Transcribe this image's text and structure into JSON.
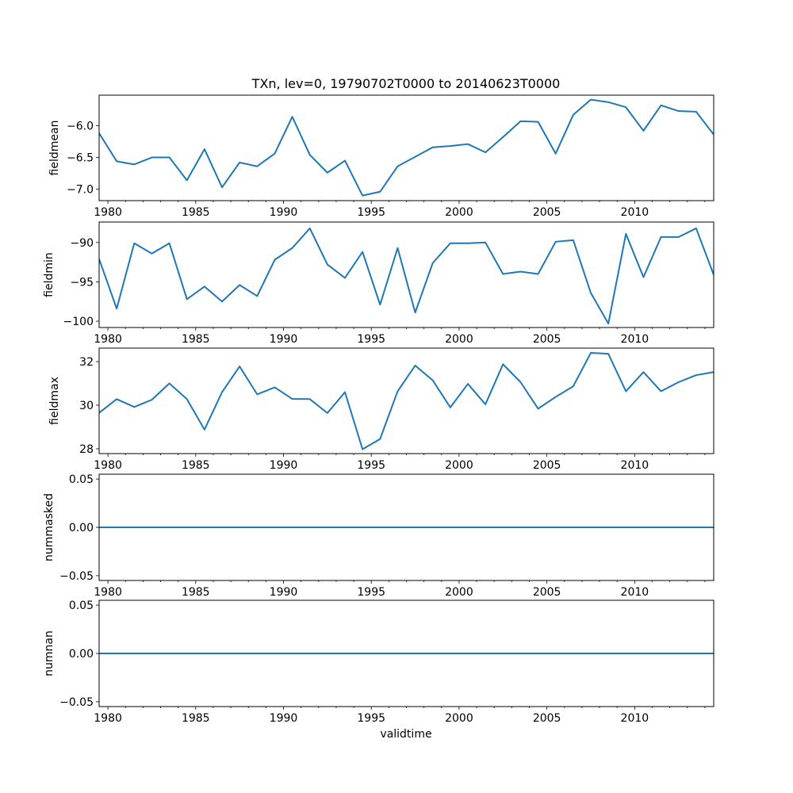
{
  "chart_data": {
    "type": "line",
    "title": "TXn, lev=0, 19790702T0000 to 20140623T0000",
    "xlabel": "validtime",
    "x": [
      1979.5,
      1980.5,
      1981.5,
      1982.5,
      1983.5,
      1984.5,
      1985.5,
      1986.5,
      1987.5,
      1988.5,
      1989.5,
      1990.5,
      1991.5,
      1992.5,
      1993.5,
      1994.5,
      1995.5,
      1996.5,
      1997.5,
      1998.5,
      1999.5,
      2000.5,
      2001.5,
      2002.5,
      2003.5,
      2004.5,
      2005.5,
      2006.5,
      2007.5,
      2008.5,
      2009.5,
      2010.5,
      2011.5,
      2012.5,
      2013.5,
      2014.5
    ],
    "xlim": [
      1979.5,
      2014.5
    ],
    "xticks": [
      1980,
      1985,
      1990,
      1995,
      2000,
      2005,
      2010
    ],
    "xtick_labels": [
      "1980",
      "1985",
      "1990",
      "1995",
      "2000",
      "2005",
      "2010"
    ],
    "grid": false,
    "series": [
      {
        "name": "fieldmean",
        "ylabel": "fieldmean",
        "ylim": [
          -7.18,
          -5.52
        ],
        "yticks": [
          -7.0,
          -6.5,
          -6.0
        ],
        "ytick_labels": [
          "−7.0",
          "−6.5",
          "−6.0"
        ],
        "color": "#1f77b4",
        "values": [
          -6.12,
          -6.56,
          -6.61,
          -6.5,
          -6.5,
          -6.86,
          -6.37,
          -6.97,
          -6.58,
          -6.64,
          -6.44,
          -5.86,
          -6.46,
          -6.74,
          -6.55,
          -7.1,
          -7.04,
          -6.64,
          -6.49,
          -6.34,
          -6.32,
          -6.29,
          -6.42,
          -6.18,
          -5.93,
          -5.94,
          -6.44,
          -5.83,
          -5.59,
          -5.63,
          -5.71,
          -6.08,
          -5.68,
          -5.77,
          -5.78,
          -6.14
        ]
      },
      {
        "name": "fieldmin",
        "ylabel": "fieldmin",
        "ylim": [
          -100.8,
          -87.4
        ],
        "yticks": [
          -100,
          -95,
          -90
        ],
        "ytick_labels": [
          "−100",
          "−95",
          "−90"
        ],
        "color": "#1f77b4",
        "values": [
          -92.1,
          -98.4,
          -90.1,
          -91.4,
          -90.1,
          -97.2,
          -95.6,
          -97.5,
          -95.4,
          -96.8,
          -92.2,
          -90.7,
          -88.2,
          -92.8,
          -94.5,
          -91.2,
          -97.9,
          -90.7,
          -98.9,
          -92.6,
          -90.1,
          -90.1,
          -90.0,
          -94.0,
          -93.7,
          -94.0,
          -89.9,
          -89.7,
          -96.4,
          -100.3,
          -88.9,
          -94.4,
          -89.3,
          -89.3,
          -88.2,
          -94.1
        ]
      },
      {
        "name": "fieldmax",
        "ylabel": "fieldmax",
        "ylim": [
          27.78,
          32.62
        ],
        "yticks": [
          28,
          30,
          32
        ],
        "ytick_labels": [
          "28",
          "30",
          "32"
        ],
        "color": "#1f77b4",
        "values": [
          29.65,
          30.28,
          29.92,
          30.25,
          31.0,
          30.28,
          28.88,
          30.6,
          31.78,
          30.5,
          30.82,
          30.29,
          30.28,
          29.64,
          30.6,
          27.98,
          28.45,
          30.64,
          31.82,
          31.14,
          29.9,
          30.98,
          30.04,
          31.88,
          31.06,
          29.84,
          30.38,
          30.87,
          32.4,
          32.36,
          30.64,
          31.52,
          30.64,
          31.06,
          31.38,
          31.52
        ]
      },
      {
        "name": "nummasked",
        "ylabel": "nummasked",
        "ylim": [
          -0.055,
          0.055
        ],
        "yticks": [
          -0.05,
          0.0,
          0.05
        ],
        "ytick_labels": [
          "−0.05",
          "0.00",
          "0.05"
        ],
        "color": "#1f77b4",
        "values": [
          0,
          0,
          0,
          0,
          0,
          0,
          0,
          0,
          0,
          0,
          0,
          0,
          0,
          0,
          0,
          0,
          0,
          0,
          0,
          0,
          0,
          0,
          0,
          0,
          0,
          0,
          0,
          0,
          0,
          0,
          0,
          0,
          0,
          0,
          0,
          0
        ]
      },
      {
        "name": "numnan",
        "ylabel": "numnan",
        "ylim": [
          -0.055,
          0.055
        ],
        "yticks": [
          -0.05,
          0.0,
          0.05
        ],
        "ytick_labels": [
          "−0.05",
          "0.00",
          "0.05"
        ],
        "color": "#1f77b4",
        "values": [
          0,
          0,
          0,
          0,
          0,
          0,
          0,
          0,
          0,
          0,
          0,
          0,
          0,
          0,
          0,
          0,
          0,
          0,
          0,
          0,
          0,
          0,
          0,
          0,
          0,
          0,
          0,
          0,
          0,
          0,
          0,
          0,
          0,
          0,
          0,
          0
        ]
      }
    ]
  }
}
